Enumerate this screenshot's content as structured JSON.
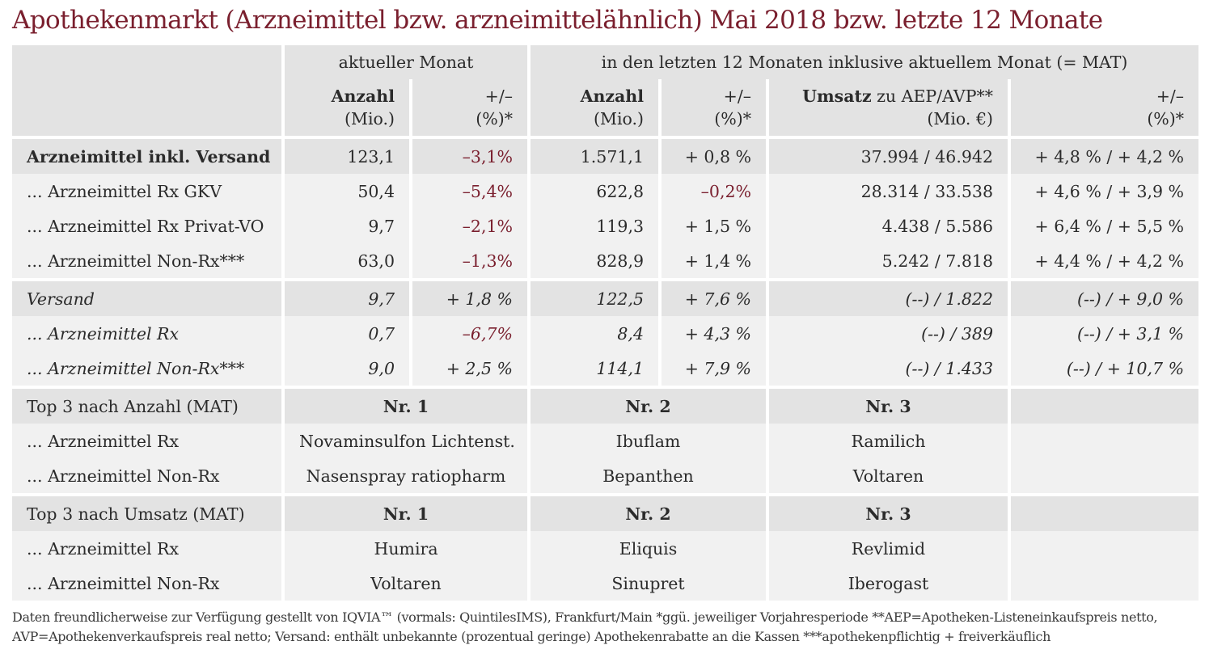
{
  "title": "Apothekenmarkt (Arzneimittel bzw. arzneimittelähnlich) Mai 2018 bzw. letzte 12 Monate",
  "header": {
    "group1": "aktueller Monat",
    "group2": "in den letzten 12 Monaten inklusive aktuellem Monat (= MAT)",
    "col_anzahl": "Anzahl",
    "col_anzahl_unit": "(Mio.)",
    "col_pm": "+/–",
    "col_pm_unit": "(%)*",
    "col_umsatz_bold": "Umsatz",
    "col_umsatz_rest": " zu AEP/AVP**",
    "col_umsatz_unit": "(Mio. €)"
  },
  "rows": [
    {
      "label": "Arzneimittel inkl. Versand",
      "a1": "123,1",
      "p1": "–3,1%",
      "a2": "1.571,1",
      "p2": "+ 0,8 %",
      "u": "37.994 / 46.942",
      "p3": "+ 4,8 % / + 4,2 %"
    },
    {
      "label": "... Arzneimittel Rx GKV",
      "a1": "50,4",
      "p1": "–5,4%",
      "a2": "622,8",
      "p2": "–0,2%",
      "u": "28.314 / 33.538",
      "p3": "+ 4,6 % / + 3,9 %"
    },
    {
      "label": "... Arzneimittel Rx Privat-VO",
      "a1": "9,7",
      "p1": "–2,1%",
      "a2": "119,3",
      "p2": "+ 1,5 %",
      "u": "4.438 / 5.586",
      "p3": "+ 6,4 % / + 5,5 %"
    },
    {
      "label": "... Arzneimittel Non-Rx***",
      "a1": "63,0",
      "p1": "–1,3%",
      "a2": "828,9",
      "p2": "+ 1,4 %",
      "u": "5.242 / 7.818",
      "p3": "+ 4,4 % / + 4,2 %"
    },
    {
      "label": "Versand",
      "a1": "9,7",
      "p1": "+ 1,8 %",
      "a2": "122,5",
      "p2": "+ 7,6 %",
      "u": "(--) / 1.822",
      "p3": "(--) / + 9,0 %"
    },
    {
      "label": "... Arzneimittel Rx",
      "a1": "0,7",
      "p1": "–6,7%",
      "a2": "8,4",
      "p2": "+ 4,3 %",
      "u": "(--) / 389",
      "p3": "(--) / + 3,1 %"
    },
    {
      "label": "... Arzneimittel Non-Rx***",
      "a1": "9,0",
      "p1": "+ 2,5 %",
      "a2": "114,1",
      "p2": "+ 7,9 %",
      "u": "(--) / 1.433",
      "p3": "(--) / + 10,7 %"
    }
  ],
  "top_anzahl": {
    "title": "Top 3 nach Anzahl (MAT)",
    "nr1": "Nr. 1",
    "nr2": "Nr. 2",
    "nr3": "Nr. 3",
    "rows": [
      {
        "label": "... Arzneimittel Rx",
        "n1": "Novaminsulfon Lichtenst.",
        "n2": "Ibuflam",
        "n3": "Ramilich"
      },
      {
        "label": "... Arzneimittel Non-Rx",
        "n1": "Nasenspray ratiopharm",
        "n2": "Bepanthen",
        "n3": "Voltaren"
      }
    ]
  },
  "top_umsatz": {
    "title": "Top 3 nach Umsatz (MAT)",
    "nr1": "Nr. 1",
    "nr2": "Nr. 2",
    "nr3": "Nr. 3",
    "rows": [
      {
        "label": "... Arzneimittel Rx",
        "n1": "Humira",
        "n2": "Eliquis",
        "n3": "Revlimid"
      },
      {
        "label": "... Arzneimittel Non-Rx",
        "n1": "Voltaren",
        "n2": "Sinupret",
        "n3": "Iberogast"
      }
    ]
  },
  "footnote": {
    "line1": "Daten freundlicherweise zur Verfügung gestellt von IQVIA™ (vormals: QuintilesIMS), Frankfurt/Main  *ggü. jeweiliger Vorjahresperiode  **AEP=Apotheken-Listeneinkaufspreis netto,",
    "line2": "AVP=Apothekenverkaufspreis real netto; Versand: enthält unbekannte (prozentual geringe) Apothekenrabatte an die Kassen   ***apothekenpflichtig + freiverkäuflich"
  },
  "colors": {
    "accent": "#7a1f2e",
    "header_bg": "#e3e3e3",
    "row_bg": "#f1f1f1"
  }
}
